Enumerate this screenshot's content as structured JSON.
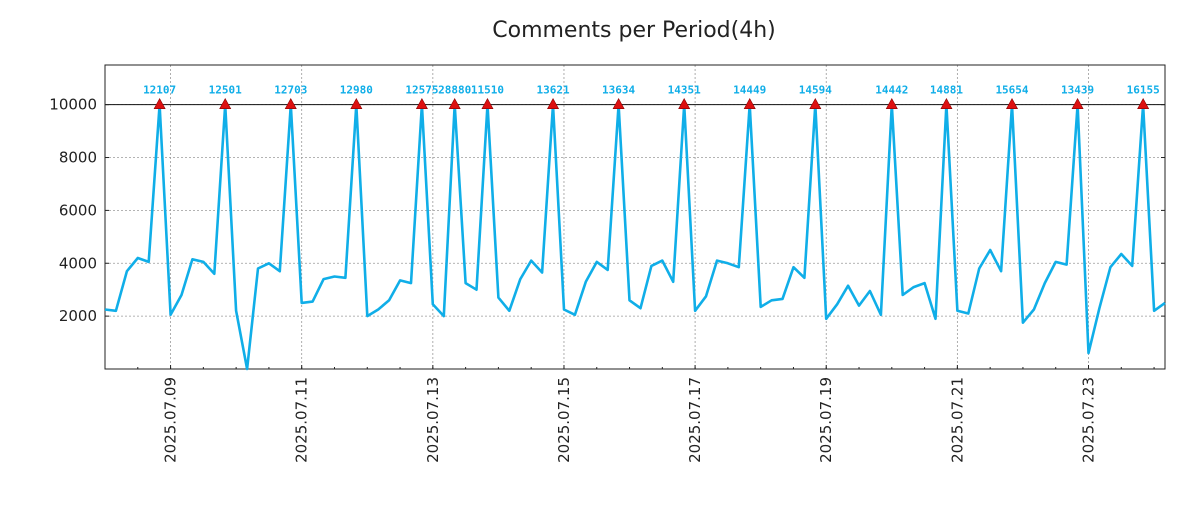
{
  "chart_data": {
    "type": "line",
    "title": "Comments per Period(4h)",
    "xlabel": "",
    "ylabel": "",
    "ylim": [
      0,
      11500
    ],
    "yticks": [
      2000,
      4000,
      6000,
      8000,
      10000
    ],
    "cap_line": 10000,
    "x_tick_labels": [
      "2025.07.09",
      "2025.07.11",
      "2025.07.13",
      "2025.07.15",
      "2025.07.17",
      "2025.07.19",
      "2025.07.21",
      "2025.07.23"
    ],
    "x_tick_index": [
      6,
      18,
      30,
      42,
      54,
      66,
      78,
      90
    ],
    "grid": true,
    "colors": {
      "line": "#10aee8",
      "marker": "#dd1111",
      "label": "#10aee8",
      "axis": "#222222"
    },
    "series": [
      {
        "name": "comments",
        "values": [
          2250,
          2200,
          3700,
          4200,
          4050,
          10000,
          2050,
          2800,
          4150,
          4050,
          3600,
          10000,
          2200,
          0,
          3800,
          4000,
          3700,
          10000,
          2500,
          2550,
          3400,
          3500,
          3450,
          10000,
          2000,
          2250,
          2600,
          3350,
          3250,
          10000,
          2450,
          2000,
          10000,
          3250,
          3000,
          10000,
          2700,
          2200,
          3400,
          4100,
          3650,
          10000,
          2250,
          2050,
          3300,
          4050,
          3750,
          10000,
          2600,
          2300,
          3900,
          4100,
          3300,
          10000,
          2200,
          2750,
          4100,
          4000,
          3850,
          10000,
          2350,
          2600,
          2650,
          3850,
          3450,
          10000,
          1900,
          2450,
          3150,
          2400,
          2950,
          2050,
          10000,
          2800,
          3100,
          3250,
          1900,
          10000,
          2200,
          2100,
          3800,
          4500,
          3700,
          10000,
          1750,
          2250,
          3250,
          4050,
          3950,
          10000,
          600,
          2300,
          3850,
          4350,
          3900,
          10000,
          2200,
          2500
        ]
      }
    ],
    "peaks": [
      {
        "index": 5,
        "value": 12107
      },
      {
        "index": 11,
        "value": 12501
      },
      {
        "index": 17,
        "value": 12703
      },
      {
        "index": 23,
        "value": 12980
      },
      {
        "index": 29,
        "value": 12575
      },
      {
        "index": 32,
        "value": 28880
      },
      {
        "index": 35,
        "value": 11510
      },
      {
        "index": 41,
        "value": 13621
      },
      {
        "index": 47,
        "value": 13634
      },
      {
        "index": 53,
        "value": 14351
      },
      {
        "index": 59,
        "value": 14449
      },
      {
        "index": 65,
        "value": 14594
      },
      {
        "index": 72,
        "value": 14442
      },
      {
        "index": 77,
        "value": 14881
      },
      {
        "index": 83,
        "value": 15654
      },
      {
        "index": 89,
        "value": 13439
      },
      {
        "index": 95,
        "value": 16155
      }
    ]
  }
}
